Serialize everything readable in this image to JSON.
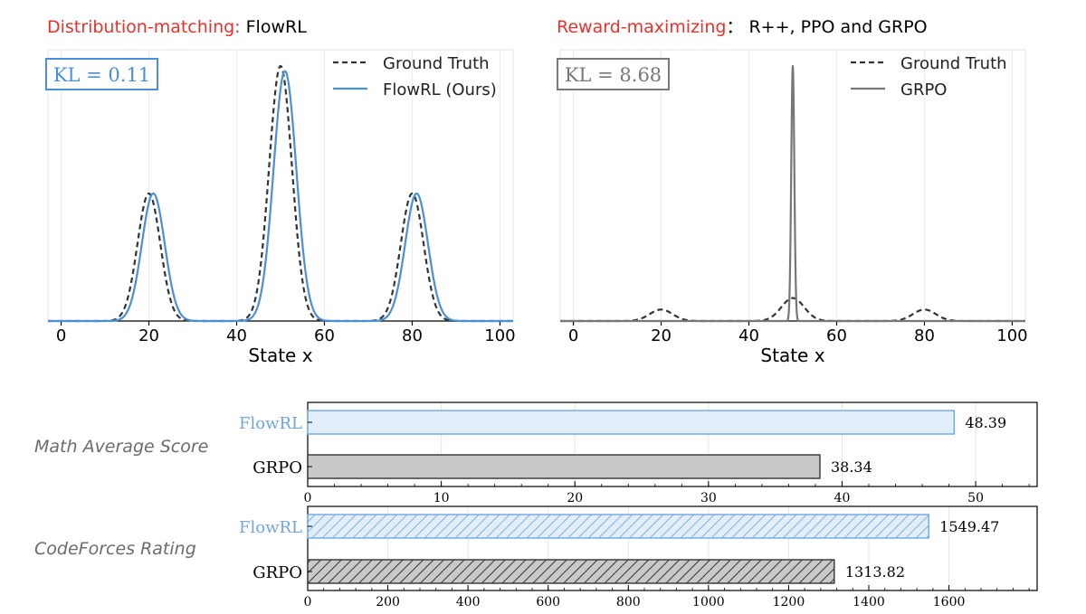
{
  "colors": {
    "accent_red": "#e8322c",
    "flowrl_blue": "#4a90d9",
    "ground_truth": "#333333",
    "grpo_gray": "#777777",
    "grpo_fill": "#c9c9c9",
    "flowrl_fill": "#e3eefb"
  },
  "panels": {
    "left_title_prefix": "Distribution-matching:",
    "left_title_suffix": " FlowRL",
    "right_title_prefix": "Reward-maximizing",
    "right_title_suffix": "：  R++, PPO and GRPO"
  },
  "chart_data": [
    {
      "type": "line",
      "id": "flowrl_distribution",
      "xlabel": "State x",
      "ylabel": "",
      "xlim": [
        -3,
        103
      ],
      "xticks": [
        0,
        20,
        40,
        60,
        80,
        100
      ],
      "annotation": "KL = 0.11",
      "legend_position": "top-right",
      "peaks": [
        20,
        50,
        80
      ],
      "series": [
        {
          "name": "Ground Truth",
          "style": "dashed",
          "color": "#333333",
          "components": [
            {
              "mu": 20,
              "sigma": 2.6,
              "amp": 0.5
            },
            {
              "mu": 50,
              "sigma": 2.6,
              "amp": 1.0
            },
            {
              "mu": 80,
              "sigma": 2.6,
              "amp": 0.5
            }
          ]
        },
        {
          "name": "FlowRL (Ours)",
          "style": "solid",
          "color": "#4a90d9",
          "components": [
            {
              "mu": 21,
              "sigma": 2.6,
              "amp": 0.5
            },
            {
              "mu": 51,
              "sigma": 2.6,
              "amp": 0.98
            },
            {
              "mu": 81,
              "sigma": 2.6,
              "amp": 0.5
            }
          ]
        }
      ]
    },
    {
      "type": "line",
      "id": "grpo_distribution",
      "xlabel": "State x",
      "ylabel": "",
      "xlim": [
        -3,
        103
      ],
      "xticks": [
        0,
        20,
        40,
        60,
        80,
        100
      ],
      "annotation": "KL = 8.68",
      "legend_position": "top-right",
      "series": [
        {
          "name": "Ground Truth",
          "style": "dashed",
          "color": "#333333",
          "components": [
            {
              "mu": 20,
              "sigma": 2.6,
              "amp": 0.045
            },
            {
              "mu": 50,
              "sigma": 2.6,
              "amp": 0.09
            },
            {
              "mu": 80,
              "sigma": 2.6,
              "amp": 0.045
            }
          ]
        },
        {
          "name": "GRPO",
          "style": "solid",
          "color": "#777777",
          "components": [
            {
              "mu": 50,
              "sigma": 0.35,
              "amp": 1.0
            }
          ]
        }
      ]
    },
    {
      "type": "bar",
      "orientation": "horizontal",
      "id": "math_average_score",
      "title": "Math Average Score",
      "categories": [
        "FlowRL",
        "GRPO"
      ],
      "values": [
        48.39,
        38.34
      ],
      "value_labels": [
        "48.39",
        "38.34"
      ],
      "xlim": [
        0,
        54.6
      ],
      "xticks": [
        0,
        10,
        20,
        30,
        40,
        50
      ],
      "hatched": false
    },
    {
      "type": "bar",
      "orientation": "horizontal",
      "id": "codeforces_rating",
      "title": "CodeForces Rating",
      "categories": [
        "FlowRL",
        "GRPO"
      ],
      "values": [
        1549.47,
        1313.82
      ],
      "value_labels": [
        "1549.47",
        "1313.82"
      ],
      "xlim": [
        0,
        1820
      ],
      "xticks": [
        0,
        200,
        400,
        600,
        800,
        1000,
        1200,
        1400,
        1600
      ],
      "hatched": true
    }
  ]
}
